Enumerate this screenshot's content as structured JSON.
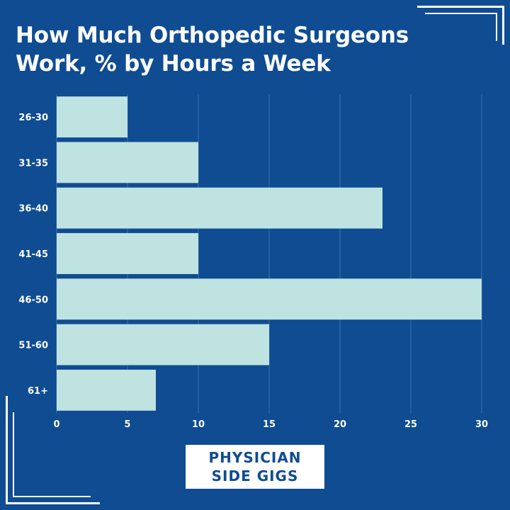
{
  "title": "How Much Orthopedic Surgeons Work, % by Hours a Week",
  "logo": {
    "line1": "PHYSICIAN",
    "line2": "SIDE GIGS"
  },
  "colors": {
    "background": "#0f4c92",
    "bar": "#bfe3e1",
    "text": "#ffffff",
    "grid": "#3f6fae"
  },
  "chart_data": {
    "type": "bar",
    "orientation": "horizontal",
    "title": "How Much Orthopedic Surgeons Work, % by Hours a Week",
    "categories": [
      "26-30",
      "31-35",
      "36-40",
      "41-45",
      "46-50",
      "51-60",
      "61+"
    ],
    "values": [
      5,
      10,
      23,
      10,
      30,
      15,
      7
    ],
    "xlim": [
      0,
      30
    ],
    "xticks": [
      0,
      5,
      10,
      15,
      20,
      25,
      30
    ],
    "grid": true
  }
}
